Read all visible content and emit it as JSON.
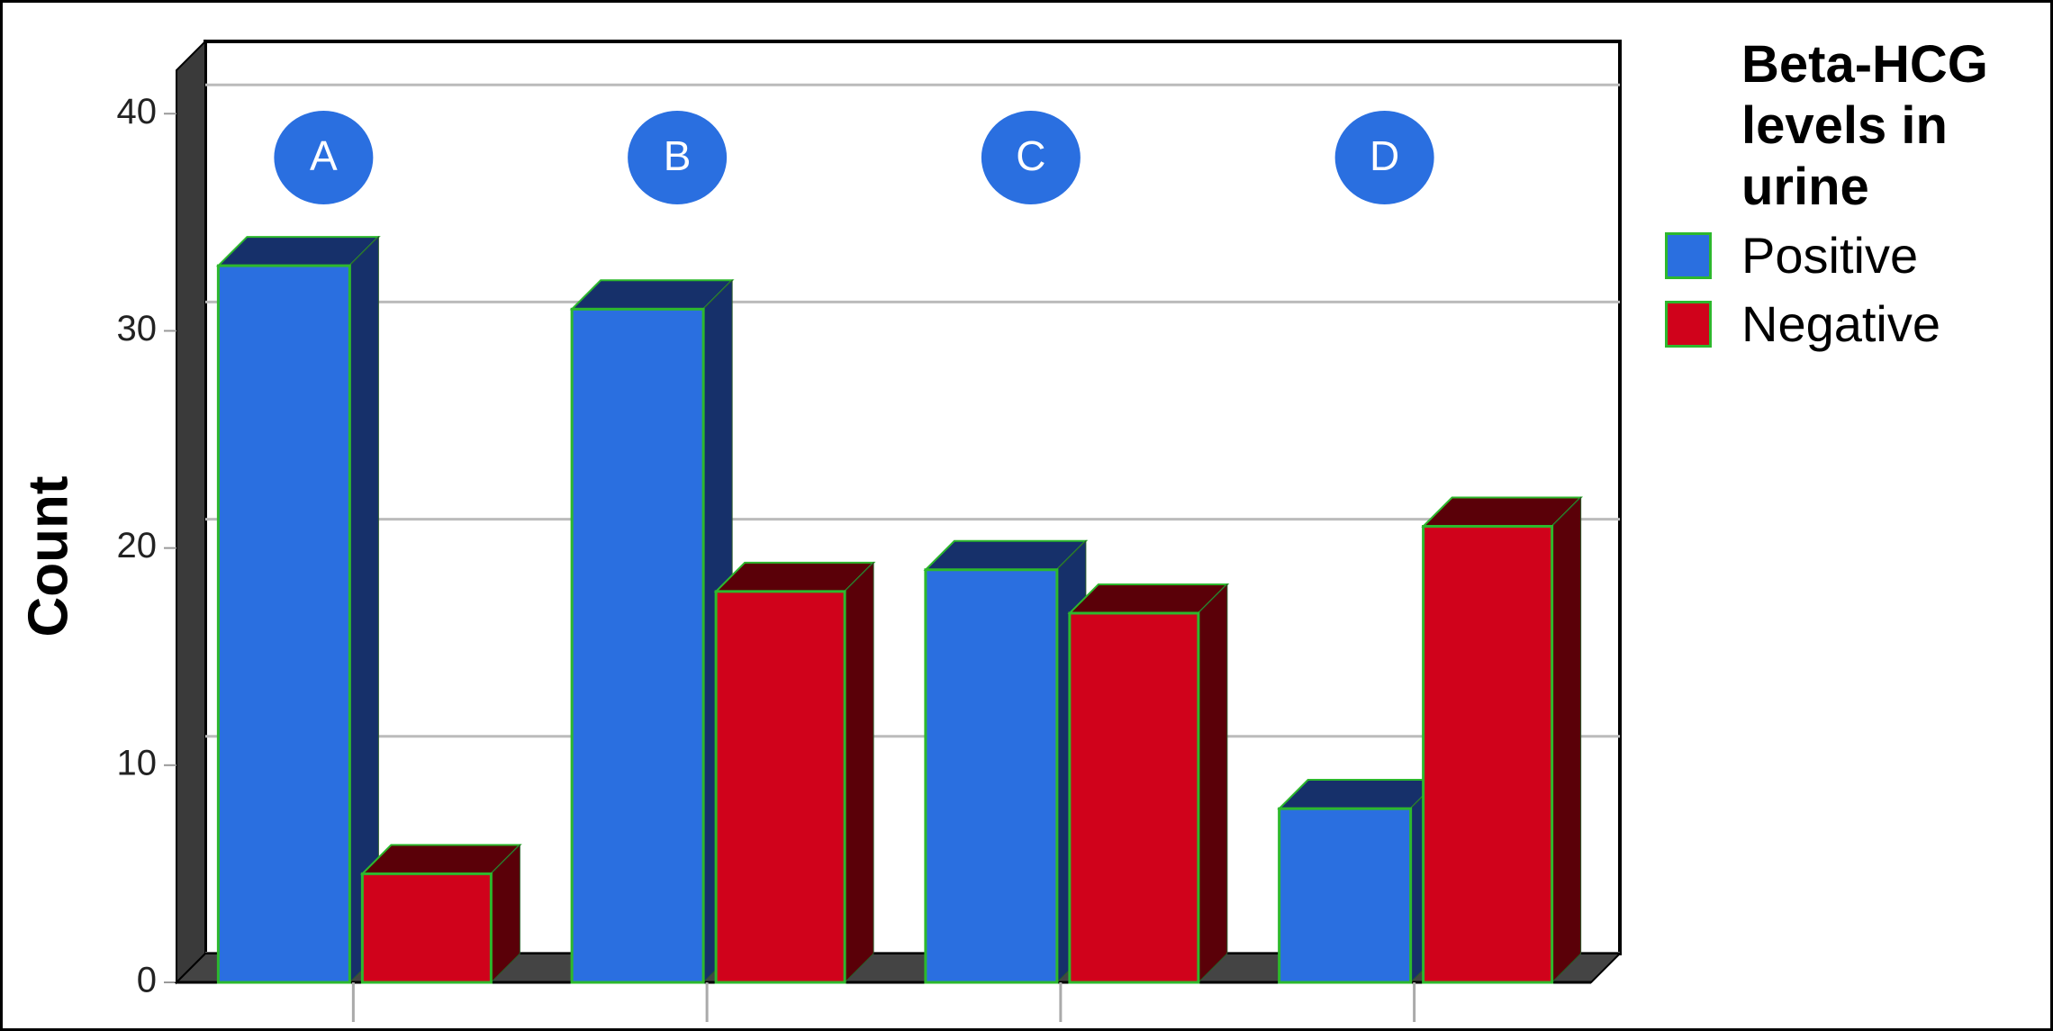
{
  "chart_data": {
    "type": "bar3d",
    "categories": [
      "A",
      "B",
      "C",
      "D"
    ],
    "y_label": "Count",
    "legend_title": "Beta-HCG levels in urine",
    "series": [
      {
        "name": "Positive",
        "color": "#2a6fe0",
        "shade": "#16306a",
        "values": [
          33,
          31,
          19,
          8
        ]
      },
      {
        "name": "Negative",
        "color": "#d0021b",
        "shade": "#5a0008",
        "values": [
          5,
          18,
          17,
          21
        ]
      }
    ],
    "ylim": [
      0,
      42
    ],
    "yticks": [
      0,
      10,
      20,
      30,
      40
    ],
    "grid": true
  }
}
